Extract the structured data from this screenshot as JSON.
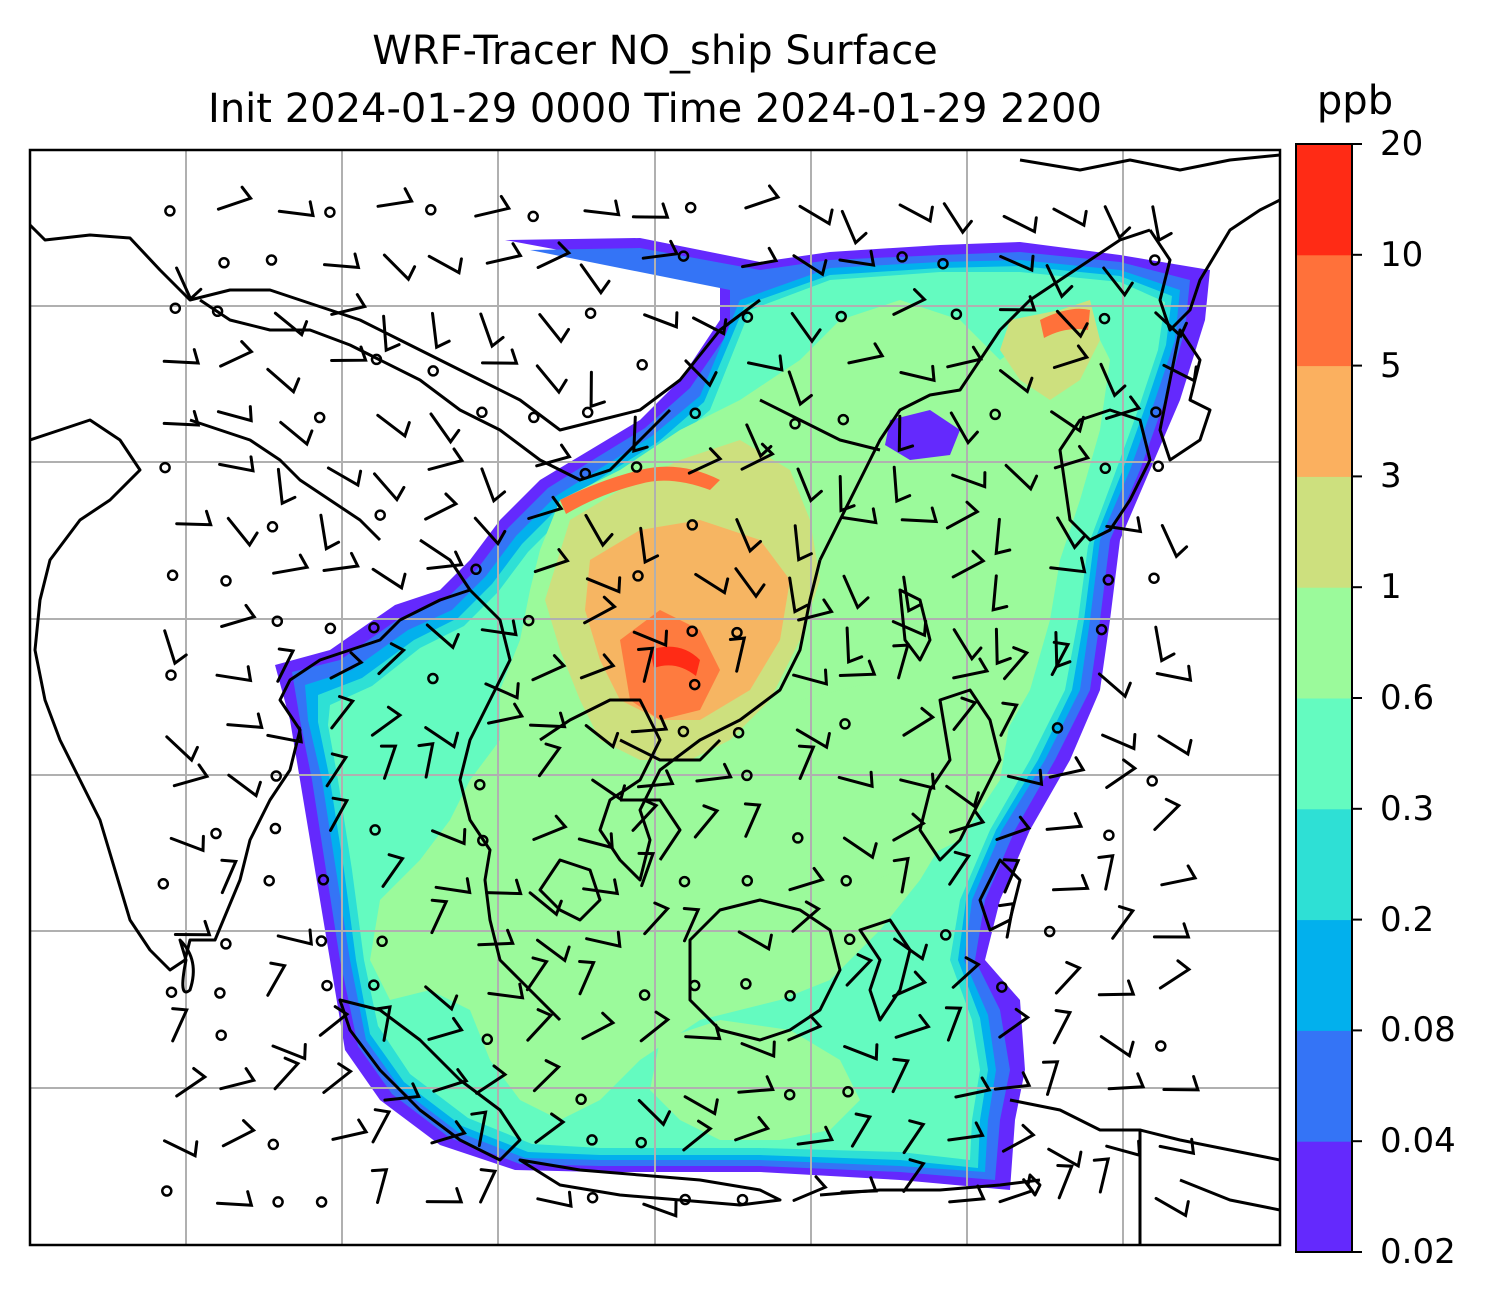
{
  "title": {
    "line1": "WRF-Tracer NO_ship Surface",
    "line2": "Init 2024-01-29 0000 Time 2024-01-29 2200"
  },
  "colorbar": {
    "unit": "ppb",
    "levels": [
      "0.02",
      "0.04",
      "0.08",
      "0.2",
      "0.3",
      "0.6",
      "1",
      "3",
      "5",
      "10",
      "20"
    ],
    "colors": [
      "#6429fd",
      "#3474f6",
      "#02b0ed",
      "#2ee0d5",
      "#64fbc0",
      "#9bfa9b",
      "#cde07e",
      "#fbb05f",
      "#ff713a",
      "#ff2b15"
    ]
  },
  "map": {
    "gridlines": true,
    "overlays": [
      "coastlines",
      "country-borders",
      "wind-barbs",
      "calm-wind-circles"
    ],
    "icons": [
      "wind-barb-icon",
      "calm-circle-icon"
    ]
  }
}
